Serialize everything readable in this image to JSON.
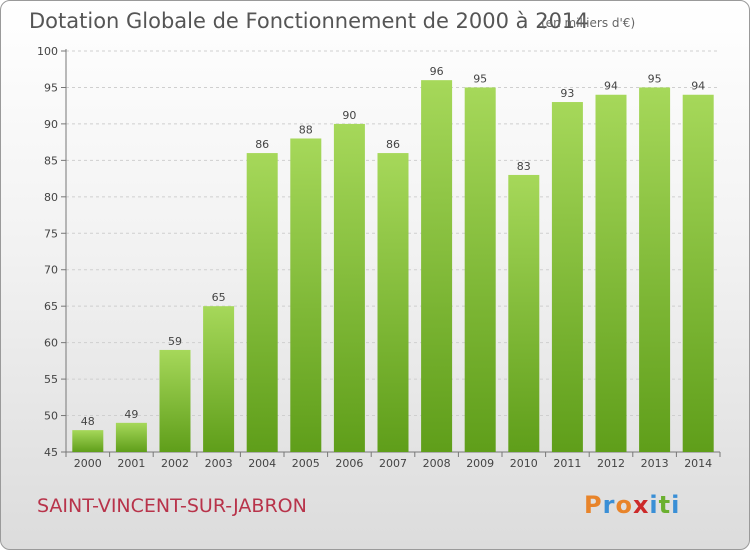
{
  "header": {
    "title": "Dotation Globale de Fonctionnement de 2000 à 2014",
    "subtitle": "(en milliers d'€)"
  },
  "footer": {
    "commune": "SAINT-VINCENT-SUR-JABRON",
    "logo_letters": [
      "P",
      "r",
      "o",
      "x",
      "i",
      "t",
      "i"
    ]
  },
  "colors": {
    "bar_top": "#a6d85a",
    "bar_bottom": "#5f9e1a",
    "logo": [
      "#e8842a",
      "#3a8fd6",
      "#e8842a",
      "#cc2a2a",
      "#3a8fd6",
      "#6bb030",
      "#3a8fd6"
    ]
  },
  "chart_data": {
    "type": "bar",
    "title": "Dotation Globale de Fonctionnement de 2000 à 2014",
    "subtitle": "(en milliers d'€)",
    "categories": [
      "2000",
      "2001",
      "2002",
      "2003",
      "2004",
      "2005",
      "2006",
      "2007",
      "2008",
      "2009",
      "2010",
      "2011",
      "2012",
      "2013",
      "2014"
    ],
    "values": [
      48,
      49,
      59,
      65,
      86,
      88,
      90,
      86,
      96,
      95,
      83,
      93,
      94,
      95,
      94
    ],
    "ylim": [
      45,
      100
    ],
    "yticks": [
      45,
      50,
      55,
      60,
      65,
      70,
      75,
      80,
      85,
      90,
      95,
      100
    ],
    "grid": true
  }
}
